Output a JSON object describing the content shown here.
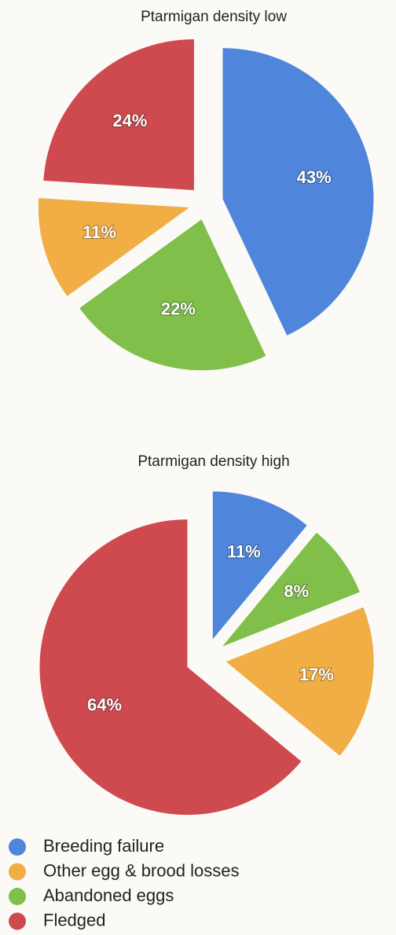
{
  "chart_data": [
    {
      "type": "pie",
      "title": "Ptarmigan density low",
      "categories": [
        "Breeding failure",
        "Abandoned eggs",
        "Other egg & brood losses",
        "Fledged"
      ],
      "values": [
        43,
        22,
        11,
        24
      ],
      "value_labels": [
        "43%",
        "22%",
        "11%",
        "24%"
      ],
      "colors": [
        "#4f86dc",
        "#7fbf4a",
        "#f0ae45",
        "#cf4a4f"
      ]
    },
    {
      "type": "pie",
      "title": "Ptarmigan density high",
      "values": [
        11,
        8,
        17,
        64
      ],
      "value_labels": [
        "11%",
        "8%",
        "17%",
        "64%"
      ],
      "colors": [
        "#4f86dc",
        "#7fbf4a",
        "#f0ae45",
        "#cf4a4f"
      ]
    }
  ]
}
